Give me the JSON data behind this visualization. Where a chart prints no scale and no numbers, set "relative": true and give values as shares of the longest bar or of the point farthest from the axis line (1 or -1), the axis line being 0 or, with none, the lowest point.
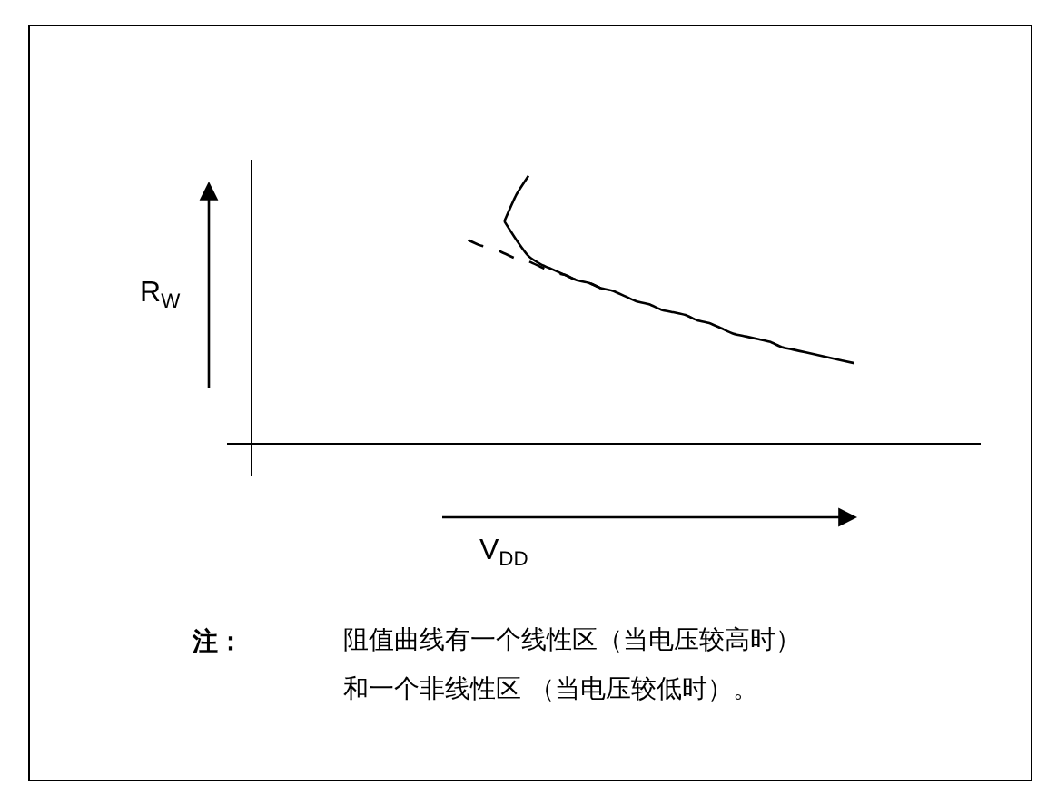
{
  "chart_data": {
    "type": "line",
    "relative": true,
    "xlabel": "V$_{DD}$",
    "marker": "none",
    "categories": [
      null,
      null,
      null,
      null,
      null,
      null,
      null,
      null,
      null,
      null,
      null,
      null,
      null,
      null,
      null,
      null,
      null,
      null,
      null,
      null,
      null,
      null,
      null,
      null,
      null,
      null,
      null,
      null,
      null,
      null,
      null,
      null,
      null
    ],
    "series": [
      {
        "color": "#000000",
        "line_style": "solid",
        "values": [
          null,
          null,
          null,
          0.83,
          0.76,
          0.7,
          0.67,
          0.65,
          0.63,
          0.61,
          0.6,
          0.58,
          0.57,
          0.55,
          0.53,
          0.52,
          0.5,
          0.49,
          0.48,
          0.46,
          0.45,
          0.43,
          0.41,
          0.4,
          0.39,
          0.38,
          0.36,
          0.35,
          0.34,
          0.33,
          0.32,
          0.31,
          0.3
        ]
      },
      {
        "color": "#000000",
        "line_style": "solid",
        "values": [
          null,
          null,
          null,
          0.83,
          0.93,
          1.0,
          null,
          null,
          null,
          null,
          null,
          null,
          null,
          null,
          null,
          null,
          null,
          null,
          null,
          null,
          null,
          null,
          null,
          null,
          null,
          null,
          null,
          null,
          null,
          null,
          null,
          null,
          null
        ]
      },
      {
        "color": "#000000",
        "line_style": "dashed",
        "values": [
          0.76,
          0.74,
          0.73,
          0.71,
          0.69,
          0.68,
          0.66,
          0.64,
          0.63,
          0.61,
          0.6,
          0.58,
          null,
          null,
          null,
          null,
          null,
          null,
          null,
          null,
          null,
          null,
          null,
          null,
          null,
          null,
          null,
          null,
          null,
          null,
          null,
          null,
          null
        ]
      }
    ],
    "annotations": [
      "R$_{W}$",
      "注：",
      "阻值曲线有一个线性区（当电压较高时）",
      "和一个非线性区 （当电压较低时）。"
    ]
  }
}
